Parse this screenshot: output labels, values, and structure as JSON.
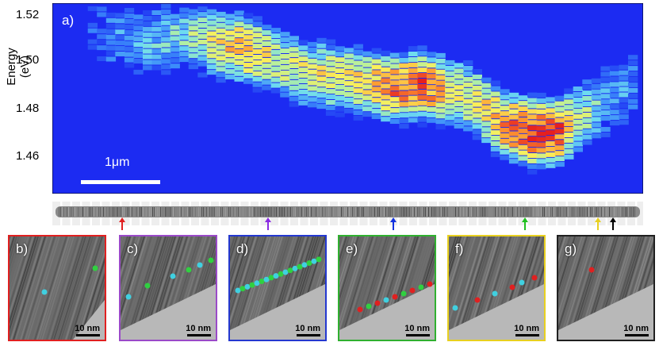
{
  "panel_a": {
    "label": "a)",
    "ylabel": "Energy (eV)",
    "yticks": [
      "1.52",
      "1.50",
      "1.48",
      "1.46"
    ],
    "scalebar": "1μm"
  },
  "chart_data": {
    "type": "heatmap",
    "title": "",
    "xlabel": "",
    "ylabel": "Energy (eV)",
    "ylim": [
      1.447,
      1.523
    ],
    "yticks": [
      1.52,
      1.5,
      1.48,
      1.46
    ],
    "background_color": "#1c2bf2",
    "note_colormap": "blue-cyan-yellow-red",
    "ridge": [
      {
        "x": 0.08,
        "y": 1.509,
        "intensity": 0.15
      },
      {
        "x": 0.12,
        "y": 1.509,
        "intensity": 0.25
      },
      {
        "x": 0.16,
        "y": 1.508,
        "intensity": 0.3
      },
      {
        "x": 0.22,
        "y": 1.51,
        "intensity": 0.45
      },
      {
        "x": 0.27,
        "y": 1.507,
        "intensity": 0.6
      },
      {
        "x": 0.32,
        "y": 1.505,
        "intensity": 0.8
      },
      {
        "x": 0.37,
        "y": 1.5,
        "intensity": 0.55
      },
      {
        "x": 0.42,
        "y": 1.495,
        "intensity": 0.6
      },
      {
        "x": 0.48,
        "y": 1.493,
        "intensity": 0.65
      },
      {
        "x": 0.53,
        "y": 1.491,
        "intensity": 0.7
      },
      {
        "x": 0.57,
        "y": 1.489,
        "intensity": 0.85
      },
      {
        "x": 0.62,
        "y": 1.49,
        "intensity": 0.9
      },
      {
        "x": 0.66,
        "y": 1.488,
        "intensity": 0.7
      },
      {
        "x": 0.71,
        "y": 1.484,
        "intensity": 0.6
      },
      {
        "x": 0.76,
        "y": 1.474,
        "intensity": 0.85
      },
      {
        "x": 0.81,
        "y": 1.471,
        "intensity": 0.95
      },
      {
        "x": 0.85,
        "y": 1.472,
        "intensity": 0.9
      },
      {
        "x": 0.89,
        "y": 1.478,
        "intensity": 0.5
      },
      {
        "x": 0.93,
        "y": 1.484,
        "intensity": 0.3
      },
      {
        "x": 0.97,
        "y": 1.49,
        "intensity": 0.2
      }
    ]
  },
  "arrows": [
    {
      "color": "#e02020"
    },
    {
      "color": "#8a2be2"
    },
    {
      "color": "#1030e0"
    },
    {
      "color": "#20c020"
    },
    {
      "color": "#e8d020"
    },
    {
      "color": "#000000"
    }
  ],
  "tem_panels": [
    {
      "label": "b)",
      "scale": "10 nm",
      "border": "#e02020"
    },
    {
      "label": "c)",
      "scale": "10 nm",
      "border": "#9a4ac8"
    },
    {
      "label": "d)",
      "scale": "10 nm",
      "border": "#2438d0"
    },
    {
      "label": "e)",
      "scale": "10 nm",
      "border": "#30b030"
    },
    {
      "label": "f)",
      "scale": "10 nm",
      "border": "#e8d020"
    },
    {
      "label": "g)",
      "scale": "10 nm",
      "border": "#202020"
    }
  ]
}
